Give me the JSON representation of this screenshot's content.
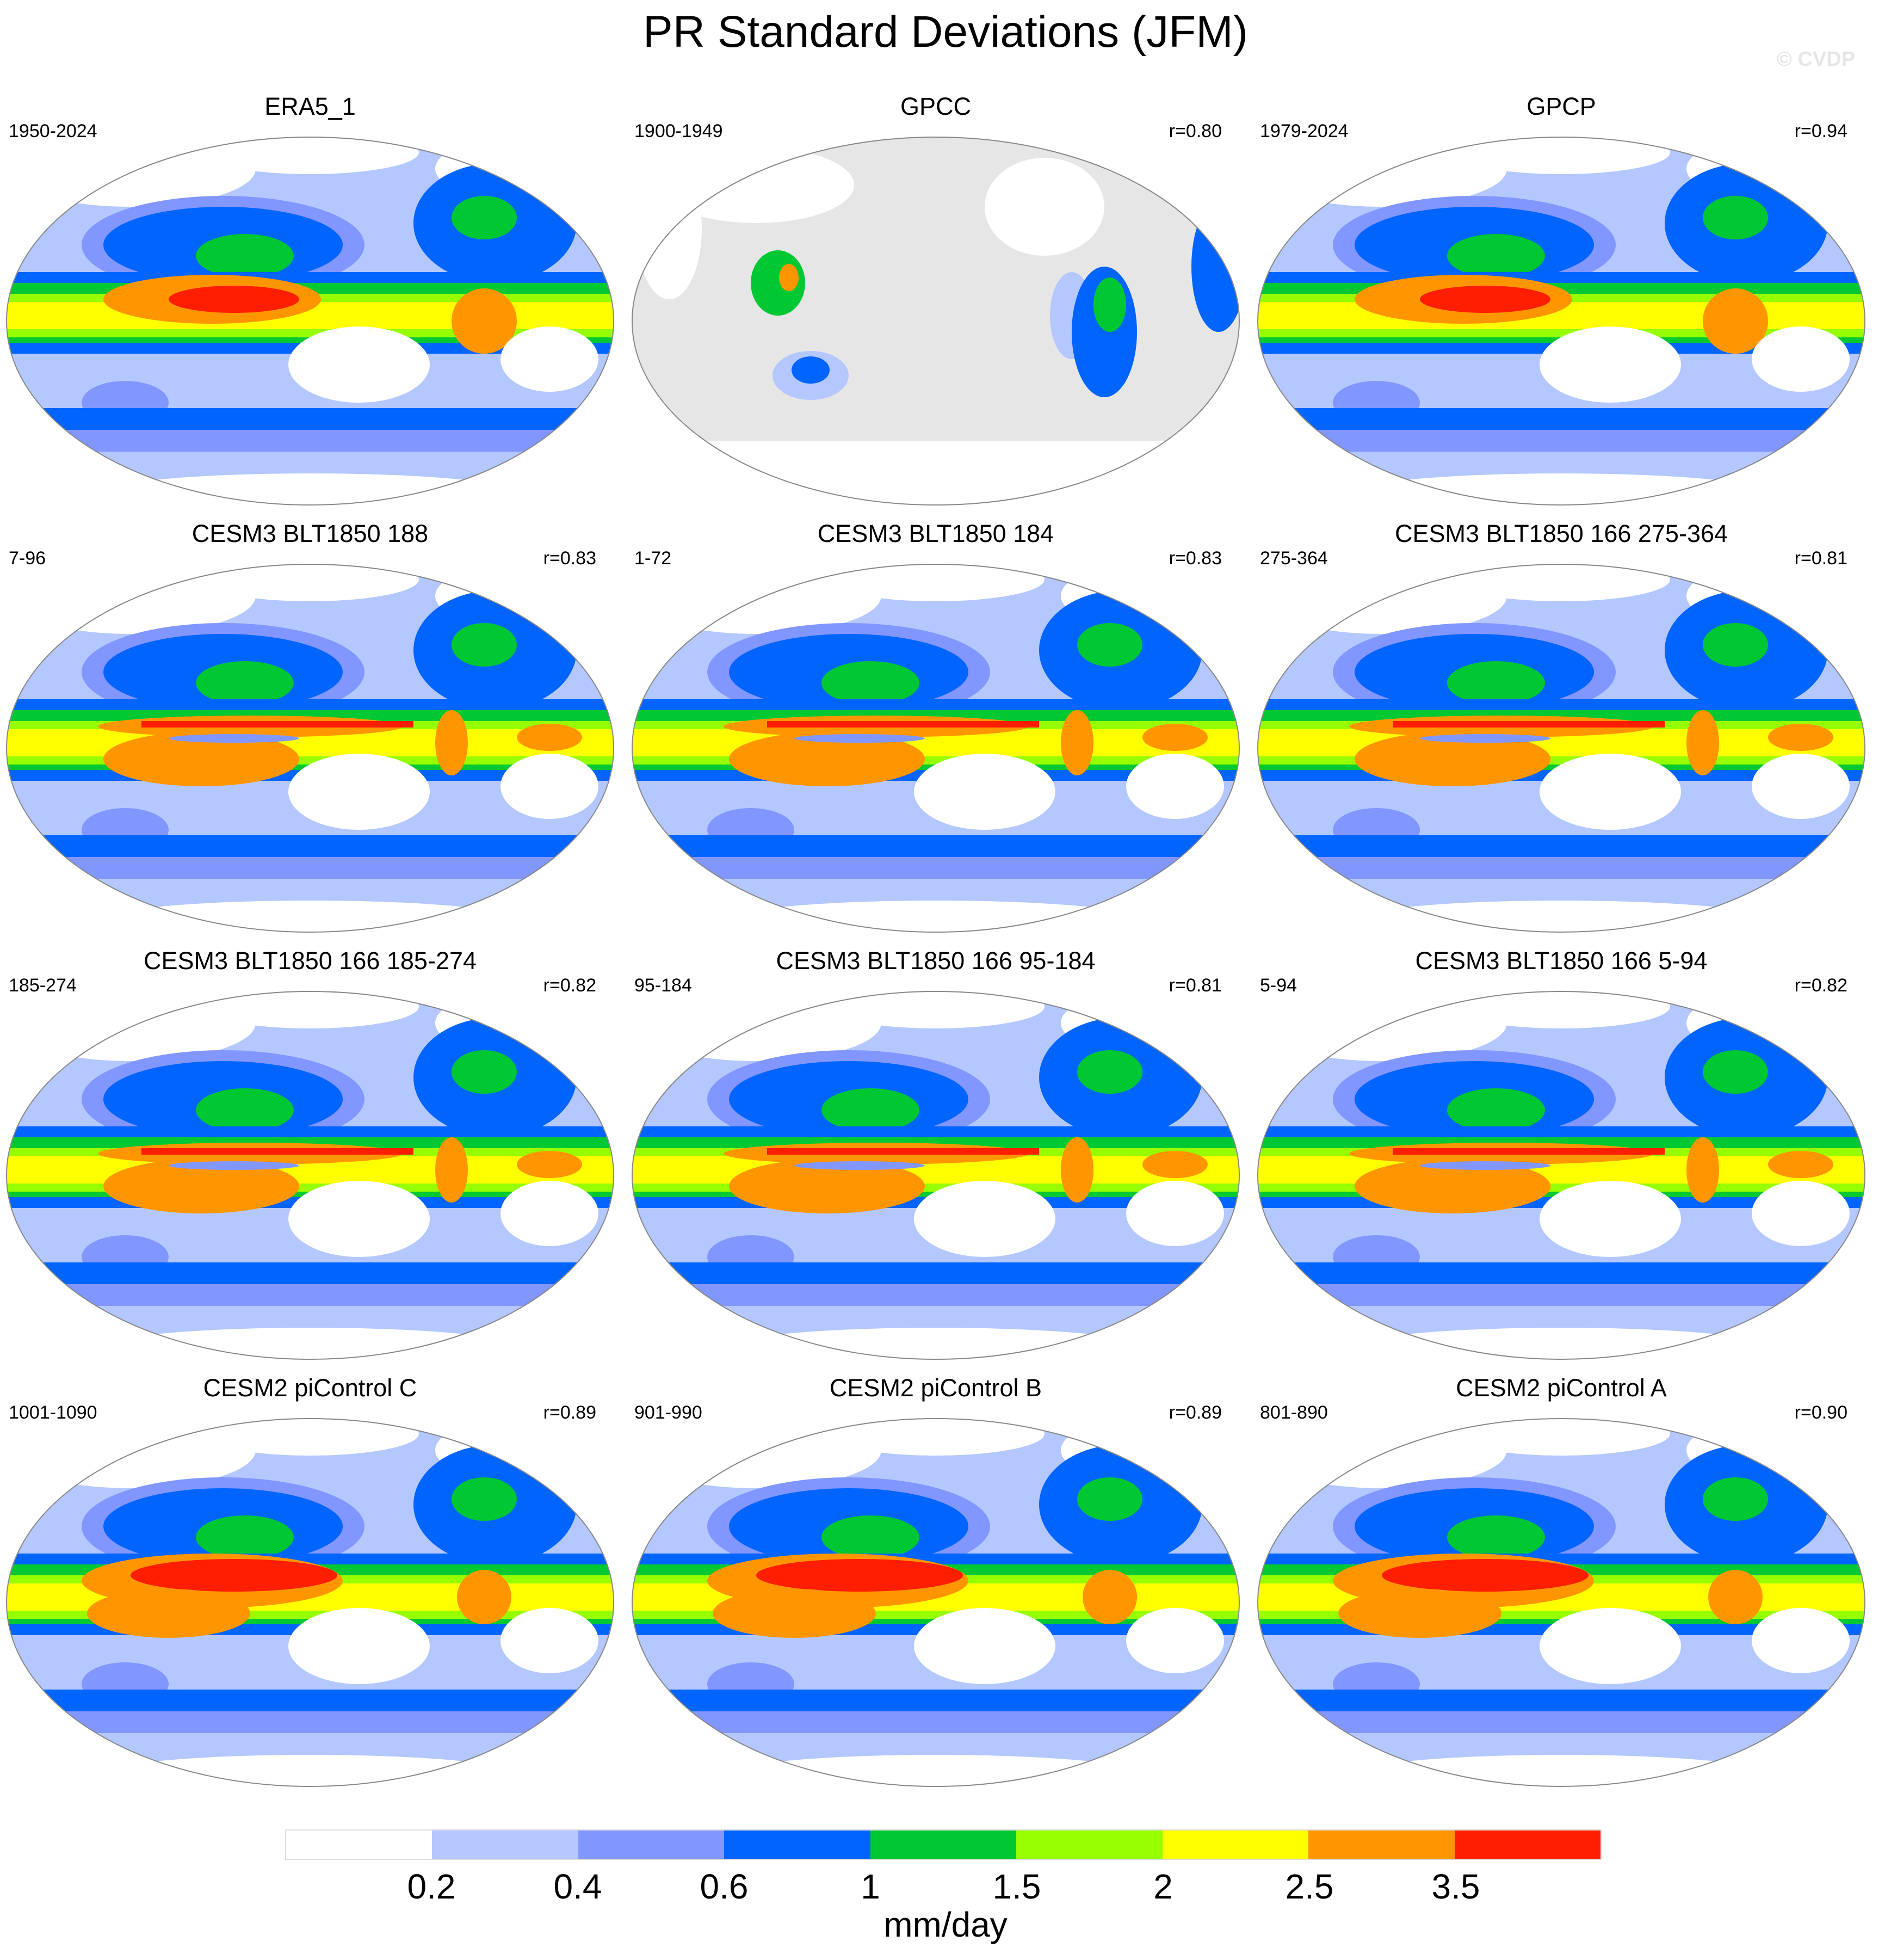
{
  "title": "PR Standard Deviations (JFM)",
  "watermark": "© CVDP",
  "units": "mm/day",
  "colorbar": {
    "colors": [
      "#ffffff",
      "#b4c8ff",
      "#8296ff",
      "#0064ff",
      "#00c832",
      "#96ff00",
      "#ffff00",
      "#ff9600",
      "#ff1e00"
    ],
    "labels": [
      "0.2",
      "0.4",
      "0.6",
      "1",
      "1.5",
      "2",
      "2.5",
      "3.5"
    ]
  },
  "panels": [
    {
      "title": "ERA5_1",
      "period": "1950-2024",
      "corr": "",
      "style": "obs"
    },
    {
      "title": "GPCC",
      "period": "1900-1949",
      "corr": "r=0.80",
      "style": "land"
    },
    {
      "title": "GPCP",
      "period": "1979-2024",
      "corr": "r=0.94",
      "style": "obs"
    },
    {
      "title": "CESM3 BLT1850 188",
      "period": "7-96",
      "corr": "r=0.83",
      "style": "model"
    },
    {
      "title": "CESM3 BLT1850 184",
      "period": "1-72",
      "corr": "r=0.83",
      "style": "model"
    },
    {
      "title": "CESM3 BLT1850 166 275-364",
      "period": "275-364",
      "corr": "r=0.81",
      "style": "model"
    },
    {
      "title": "CESM3 BLT1850 166 185-274",
      "period": "185-274",
      "corr": "r=0.82",
      "style": "model"
    },
    {
      "title": "CESM3 BLT1850 166 95-184",
      "period": "95-184",
      "corr": "r=0.81",
      "style": "model"
    },
    {
      "title": "CESM3 BLT1850 166 5-94",
      "period": "5-94",
      "corr": "r=0.82",
      "style": "model"
    },
    {
      "title": "CESM2 piControl C",
      "period": "1001-1090",
      "corr": "r=0.89",
      "style": "cesm2"
    },
    {
      "title": "CESM2 piControl B",
      "period": "901-990",
      "corr": "r=0.89",
      "style": "cesm2"
    },
    {
      "title": "CESM2 piControl A",
      "period": "801-890",
      "corr": "r=0.90",
      "style": "cesm2"
    }
  ]
}
